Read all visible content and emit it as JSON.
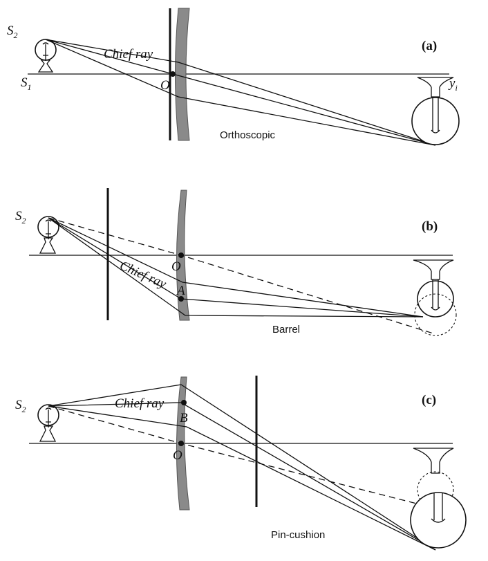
{
  "panels": {
    "a": {
      "label": "(a)",
      "caption": "Orthoscopic",
      "source_label": "S",
      "source_sub": "2",
      "axis_label": "S",
      "axis_sub": "1",
      "chief": "Chief ray",
      "center": "O",
      "image_label": "y",
      "image_sub": "i"
    },
    "b": {
      "label": "(b)",
      "caption": "Barrel",
      "source_label": "S",
      "source_sub": "2",
      "chief": "Chief ray",
      "center": "O",
      "point": "A"
    },
    "c": {
      "label": "(c)",
      "caption": "Pin-cushion",
      "source_label": "S",
      "source_sub": "2",
      "chief": "Chief ray",
      "center": "O",
      "point": "B"
    }
  },
  "colors": {
    "lens": "#8a8a8a",
    "ink": "#111111"
  }
}
